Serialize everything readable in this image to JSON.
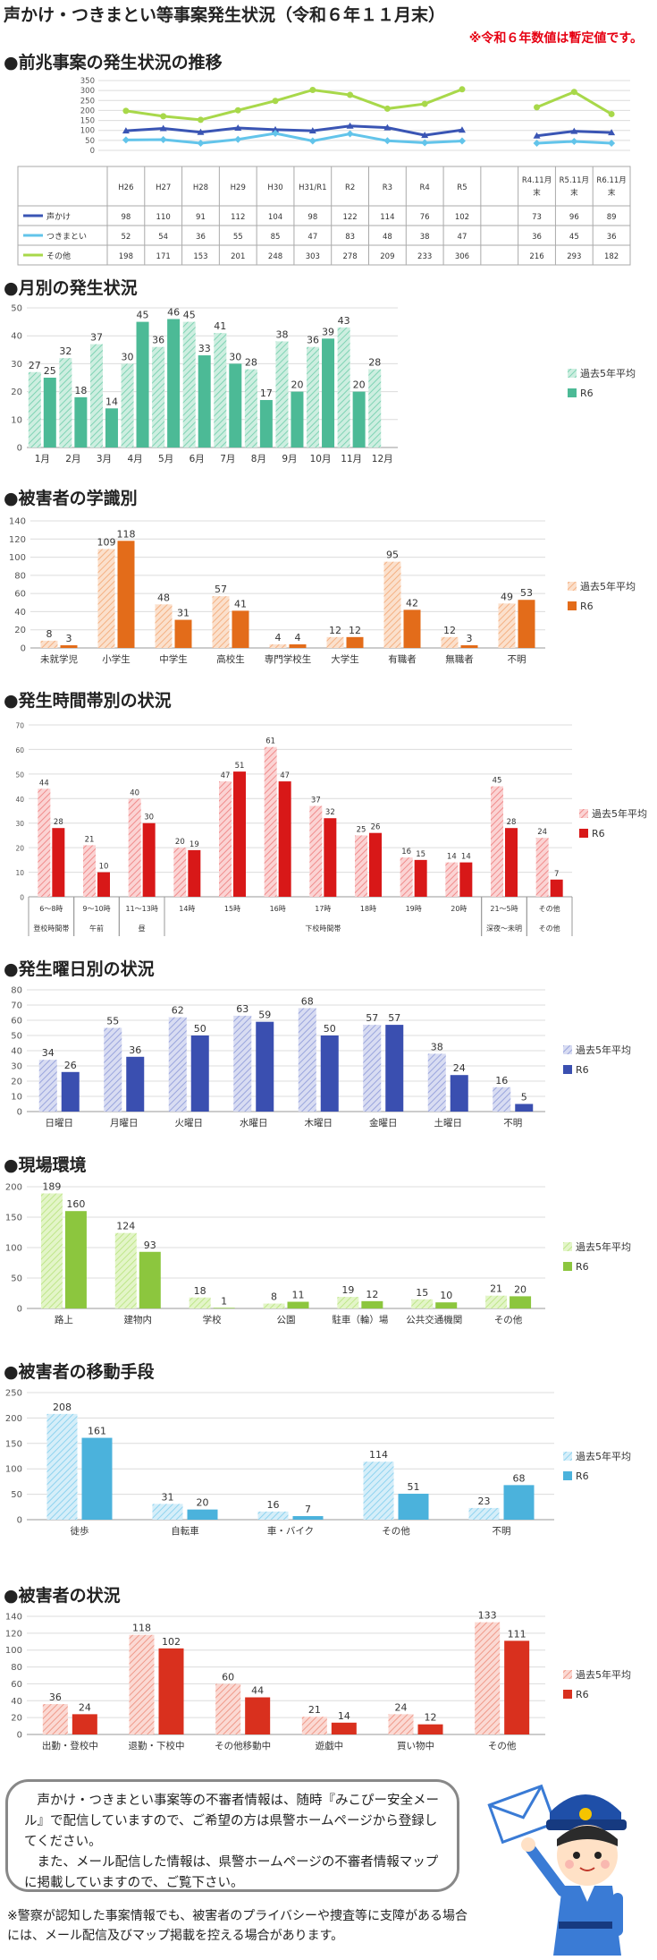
{
  "header": {
    "title": "声かけ・つきまとい等事案発生状況（令和６年１１月末）",
    "note": "※令和６年数値は暫定値です。"
  },
  "sections": {
    "trend": "●前兆事案の発生状況の推移",
    "monthly": "●月別の発生状況",
    "school": "●被害者の学識別",
    "time": "●発生時間帯別の状況",
    "weekday": "●発生曜日別の状況",
    "place": "●現場環境",
    "transport": "●被害者の移動手段",
    "situation": "●被害者の状況"
  },
  "colors": {
    "past": "#c6e0f5",
    "r6": "#e60012"
  },
  "message": {
    "p1": "声かけ・つきまとい事案等の不審者情報は、随時『みこぴー安全メール』で配信していますので、ご希望の方は県警ホームページから登録してください。",
    "p2": "また、メール配信した情報は、県警ホームページの不審者情報マップに掲載していますので、ご覧下さい。"
  },
  "footnote": "※警察が認知した事案情報でも、被害者のプライバシーや捜査等に支障がある場合には、メール配信及びマップ掲載を控える場合があります。",
  "chart_data": [
    {
      "id": "trend",
      "type": "line",
      "categories": [
        "H26",
        "H27",
        "H28",
        "H29",
        "H30",
        "H31/R1",
        "R2",
        "R3",
        "R4",
        "R5",
        "",
        "R4.11月末",
        "R5.11月末",
        "R6.11月末"
      ],
      "ylim": [
        0,
        350
      ],
      "yticks": [
        0,
        50,
        100,
        150,
        200,
        250,
        300,
        350
      ],
      "series": [
        {
          "name": "声かけ",
          "color": "#3a55b4",
          "marker": "triangle",
          "values": [
            98,
            110,
            91,
            112,
            104,
            98,
            122,
            114,
            76,
            102,
            null,
            73,
            96,
            89
          ]
        },
        {
          "name": "つきまとい",
          "color": "#62c4ea",
          "marker": "diamond",
          "values": [
            52,
            54,
            36,
            55,
            85,
            47,
            83,
            48,
            38,
            47,
            null,
            36,
            45,
            36
          ]
        },
        {
          "name": "その他",
          "color": "#a8d84a",
          "marker": "circle",
          "values": [
            198,
            171,
            153,
            201,
            248,
            303,
            278,
            209,
            233,
            306,
            null,
            216,
            293,
            182
          ]
        }
      ]
    },
    {
      "id": "monthly",
      "type": "bar",
      "categories": [
        "1月",
        "2月",
        "3月",
        "4月",
        "5月",
        "6月",
        "7月",
        "8月",
        "9月",
        "10月",
        "11月",
        "12月"
      ],
      "ylim": [
        0,
        50
      ],
      "yticks": [
        0,
        10,
        20,
        30,
        40,
        50
      ],
      "series": [
        {
          "name": "過去5年平均",
          "color": "#cdeee0",
          "hatch": "#7fd3b4",
          "values": [
            27,
            32,
            37,
            30,
            36,
            45,
            41,
            28,
            38,
            36,
            43,
            28
          ]
        },
        {
          "name": "R6",
          "color": "#4cba96",
          "values": [
            25,
            18,
            14,
            45,
            46,
            33,
            30,
            17,
            20,
            39,
            20,
            null
          ]
        }
      ]
    },
    {
      "id": "school",
      "type": "bar",
      "categories": [
        "未就学児",
        "小学生",
        "中学生",
        "高校生",
        "専門学校生",
        "大学生",
        "有職者",
        "無職者",
        "不明"
      ],
      "ylim": [
        0,
        140
      ],
      "yticks": [
        0,
        20,
        40,
        60,
        80,
        100,
        120,
        140
      ],
      "series": [
        {
          "name": "過去5年平均",
          "color": "#fbe0cc",
          "hatch": "#f4b183",
          "values": [
            8,
            109,
            48,
            57,
            4,
            12,
            95,
            12,
            49
          ]
        },
        {
          "name": "R6",
          "color": "#e36c1a",
          "values": [
            3,
            118,
            31,
            41,
            4,
            12,
            42,
            3,
            53
          ]
        }
      ]
    },
    {
      "id": "time",
      "type": "bar",
      "categories": [
        "6～8時",
        "9～10時",
        "11～13時",
        "14時",
        "15時",
        "16時",
        "17時",
        "18時",
        "19時",
        "20時",
        "21～5時",
        "その他"
      ],
      "groups": [
        {
          "label": "登校時間帯",
          "from": 0,
          "to": 0
        },
        {
          "label": "午前",
          "from": 1,
          "to": 1
        },
        {
          "label": "昼",
          "from": 2,
          "to": 2
        },
        {
          "label": "下校時間帯",
          "from": 3,
          "to": 9
        },
        {
          "label": "深夜～未明",
          "from": 10,
          "to": 10
        },
        {
          "label": "その他",
          "from": 11,
          "to": 11
        }
      ],
      "ylim": [
        0,
        70
      ],
      "yticks": [
        0,
        10,
        20,
        30,
        40,
        50,
        60,
        70
      ],
      "series": [
        {
          "name": "過去5年平均",
          "color": "#fbd3d3",
          "hatch": "#f08c8c",
          "values": [
            44,
            21,
            40,
            20,
            47,
            61,
            37,
            25,
            16,
            14,
            45,
            24
          ]
        },
        {
          "name": "R6",
          "color": "#d81818",
          "values": [
            28,
            10,
            30,
            19,
            51,
            47,
            32,
            26,
            15,
            14,
            28,
            7
          ]
        }
      ]
    },
    {
      "id": "weekday",
      "type": "bar",
      "categories": [
        "日曜日",
        "月曜日",
        "火曜日",
        "水曜日",
        "木曜日",
        "金曜日",
        "土曜日",
        "不明"
      ],
      "ylim": [
        0,
        80
      ],
      "yticks": [
        0,
        10,
        20,
        30,
        40,
        50,
        60,
        70,
        80
      ],
      "series": [
        {
          "name": "過去5年平均",
          "color": "#d8dcf2",
          "hatch": "#9aa5dd",
          "values": [
            34,
            55,
            62,
            63,
            68,
            57,
            38,
            16
          ]
        },
        {
          "name": "R6",
          "color": "#3a4fb0",
          "values": [
            26,
            36,
            50,
            59,
            50,
            57,
            24,
            5
          ]
        }
      ]
    },
    {
      "id": "place",
      "type": "bar",
      "categories": [
        "路上",
        "建物内",
        "学校",
        "公園",
        "駐車（輪）場",
        "公共交通機関",
        "その他"
      ],
      "ylim": [
        0,
        200
      ],
      "yticks": [
        0,
        50,
        100,
        150,
        200
      ],
      "series": [
        {
          "name": "過去5年平均",
          "color": "#e3f5c8",
          "hatch": "#bfe68a",
          "values": [
            189,
            124,
            18,
            8,
            19,
            15,
            21
          ]
        },
        {
          "name": "R6",
          "color": "#8cc63e",
          "values": [
            160,
            93,
            1,
            11,
            12,
            10,
            20
          ]
        }
      ]
    },
    {
      "id": "transport",
      "type": "bar",
      "categories": [
        "徒歩",
        "自転車",
        "車・バイク",
        "その他",
        "不明"
      ],
      "ylim": [
        0,
        250
      ],
      "yticks": [
        0,
        50,
        100,
        150,
        200,
        250
      ],
      "series": [
        {
          "name": "過去5年平均",
          "color": "#d5eef9",
          "hatch": "#8fd3ef",
          "values": [
            208,
            31,
            16,
            114,
            23
          ]
        },
        {
          "name": "R6",
          "color": "#4bb2dc",
          "values": [
            161,
            20,
            7,
            51,
            68
          ]
        }
      ]
    },
    {
      "id": "situation",
      "type": "bar",
      "categories": [
        "出勤・登校中",
        "退勤・下校中",
        "その他移動中",
        "遊戯中",
        "買い物中",
        "その他"
      ],
      "ylim": [
        0,
        140
      ],
      "yticks": [
        0,
        20,
        40,
        60,
        80,
        100,
        120,
        140
      ],
      "series": [
        {
          "name": "過去5年平均",
          "color": "#fbd9d3",
          "hatch": "#ef9a8a",
          "values": [
            36,
            118,
            60,
            21,
            24,
            133
          ]
        },
        {
          "name": "R6",
          "color": "#d9301e",
          "values": [
            24,
            102,
            44,
            14,
            12,
            111
          ]
        }
      ]
    }
  ]
}
